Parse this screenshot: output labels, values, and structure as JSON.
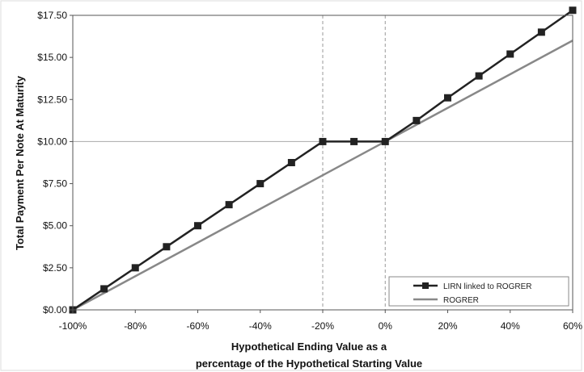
{
  "chart_data": {
    "type": "line",
    "xlabel_lines": [
      "Hypothetical Ending Value as a",
      "percentage of the Hypothetical Starting Value"
    ],
    "ylabel": "Total Payment Per Note At Maturity",
    "xlim": [
      -100,
      60
    ],
    "ylim": [
      0,
      17.5
    ],
    "x_ticks": [
      -100,
      -80,
      -60,
      -40,
      -20,
      0,
      20,
      40,
      60
    ],
    "x_tick_labels": [
      "-100%",
      "-80%",
      "-60%",
      "-40%",
      "-20%",
      "0%",
      "20%",
      "40%",
      "60%"
    ],
    "y_ticks": [
      0,
      2.5,
      5,
      7.5,
      10,
      12.5,
      15,
      17.5
    ],
    "y_tick_labels": [
      "$0.00",
      "$2.50",
      "$5.00",
      "$7.50",
      "$10.00",
      "$12.50",
      "$15.00",
      "$17.50"
    ],
    "reference_lines": {
      "vertical_dashed_x": [
        -20,
        0
      ],
      "horizontal_solid_y": [
        10
      ]
    },
    "legend_position": "bottom-right",
    "series": [
      {
        "name": "LIRN linked to ROGRER",
        "color": "#222222",
        "marker": "square",
        "x": [
          -100,
          -90,
          -80,
          -70,
          -60,
          -50,
          -40,
          -30,
          -20,
          -10,
          0,
          10,
          20,
          30,
          40,
          50,
          60
        ],
        "values": [
          0,
          1.25,
          2.5,
          3.75,
          5.0,
          6.25,
          7.5,
          8.75,
          10.0,
          10.0,
          10.0,
          11.25,
          12.6,
          13.9,
          15.2,
          16.5,
          17.8
        ]
      },
      {
        "name": "ROGRER",
        "color": "#888888",
        "marker": "none",
        "x": [
          -100,
          60
        ],
        "values": [
          0,
          16.0
        ]
      }
    ]
  }
}
